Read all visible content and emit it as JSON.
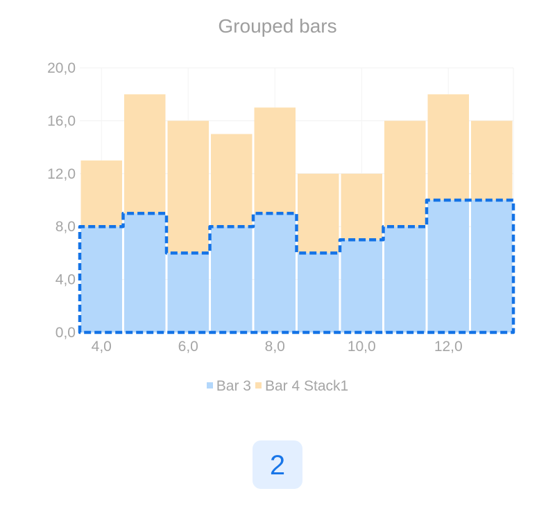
{
  "chart_data": {
    "type": "bar",
    "stacked": true,
    "title": "Grouped bars",
    "xlabel": "",
    "ylabel": "",
    "x": [
      4,
      5,
      6,
      7,
      8,
      9,
      10,
      11,
      12,
      13
    ],
    "x_tick_values": [
      4,
      6,
      8,
      10,
      12
    ],
    "x_tick_labels": [
      "4,0",
      "6,0",
      "8,0",
      "10,0",
      "12,0"
    ],
    "xlim": [
      3.5,
      13.5
    ],
    "ylim": [
      0,
      20
    ],
    "y_tick_values": [
      0,
      4,
      8,
      12,
      16,
      20
    ],
    "y_tick_labels": [
      "0,0",
      "4,0",
      "8,0",
      "12,0",
      "16,0",
      "20,0"
    ],
    "grid": true,
    "legend_position": "bottom",
    "series": [
      {
        "name": "Bar 3",
        "color": "#b3d7fb",
        "values": [
          8,
          9,
          6,
          8,
          9,
          6,
          7,
          8,
          10,
          10
        ]
      },
      {
        "name": "Bar 4 Stack1",
        "color": "#fddfb0",
        "values": [
          5,
          9,
          10,
          7,
          8,
          6,
          5,
          8,
          8,
          6
        ]
      }
    ],
    "highlight": {
      "series": "Bar 3",
      "color": "#1473e6",
      "style": "dashed-outline"
    }
  },
  "page_badge": {
    "label": "2",
    "color": "#1976e8",
    "background": "#e3efff"
  }
}
